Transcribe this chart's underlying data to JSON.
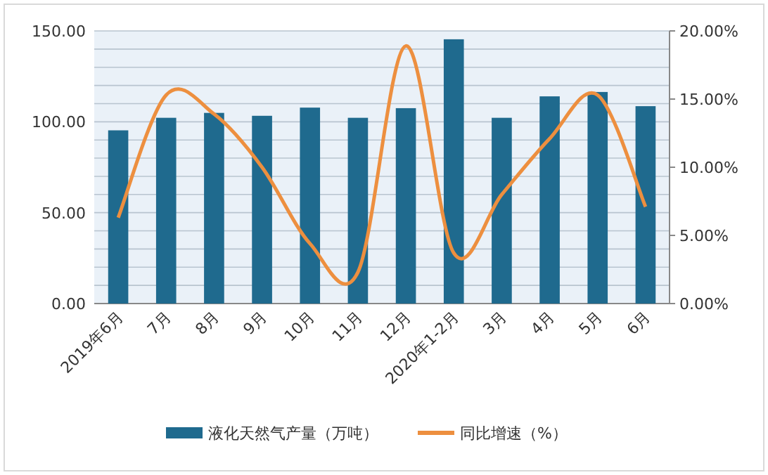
{
  "chart_data": {
    "type": "bar",
    "categories": [
      "2019年6月",
      "7月",
      "8月",
      "9月",
      "10月",
      "11月",
      "12月",
      "2020年1-2月",
      "3月",
      "4月",
      "5月",
      "6月"
    ],
    "series": [
      {
        "name": "液化天然气产量（万吨）",
        "color": "#1f6a8e",
        "values": [
          95.3,
          102.2,
          104.9,
          103.3,
          107.8,
          102.2,
          107.5,
          145.4,
          102.2,
          114.0,
          116.4,
          108.6
        ]
      },
      {
        "name": "同比增速（%）",
        "type": "line",
        "axis": "y2",
        "color": "#ed8f3f",
        "values": [
          6.3,
          15.3,
          13.9,
          10.0,
          4.4,
          2.3,
          18.9,
          3.7,
          8.0,
          12.1,
          15.3,
          7.1
        ]
      }
    ],
    "ylim": [
      0,
      150
    ],
    "yticks": [
      {
        "value": 0,
        "label": "0.00"
      },
      {
        "value": 10,
        "label": null
      },
      {
        "value": 20,
        "label": null
      },
      {
        "value": 30,
        "label": null
      },
      {
        "value": 40,
        "label": null
      },
      {
        "value": 50,
        "label": "50.00"
      },
      {
        "value": 60,
        "label": null
      },
      {
        "value": 70,
        "label": null
      },
      {
        "value": 80,
        "label": null
      },
      {
        "value": 90,
        "label": null
      },
      {
        "value": 100,
        "label": "100.00"
      },
      {
        "value": 110,
        "label": null
      },
      {
        "value": 120,
        "label": null
      },
      {
        "value": 130,
        "label": null
      },
      {
        "value": 140,
        "label": null
      },
      {
        "value": 150,
        "label": "150.00"
      }
    ],
    "y2lim": [
      0,
      20
    ],
    "y2ticks": [
      {
        "value": 0,
        "label": "0.00%"
      },
      {
        "value": 5,
        "label": "5.00%"
      },
      {
        "value": 10,
        "label": "10.00%"
      },
      {
        "value": 15,
        "label": "15.00%"
      },
      {
        "value": 20,
        "label": "20.00%"
      }
    ],
    "grid": "y",
    "legend": "bottom",
    "marker": "none",
    "line_style": "solid"
  }
}
